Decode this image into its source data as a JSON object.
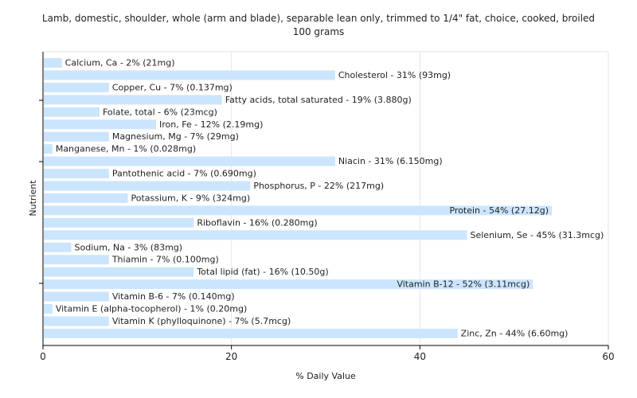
{
  "chart_data": {
    "type": "bar",
    "orientation": "horizontal",
    "title": "Lamb, domestic, shoulder, whole (arm and blade), separable lean only, trimmed to 1/4\" fat, choice, cooked, broiled",
    "subtitle": "100 grams",
    "xlabel": "% Daily Value",
    "ylabel": "Nutrient",
    "xlim": [
      0,
      60
    ],
    "xticks": [
      0,
      20,
      40,
      60
    ],
    "xtick_labels": [
      "0",
      "20",
      "40",
      "60"
    ],
    "grid": true,
    "bar_color": "#cce5ff",
    "grid_color": "#e6e6e6",
    "categories": [
      "Calcium, Ca",
      "Cholesterol",
      "Copper, Cu",
      "Fatty acids, total saturated",
      "Folate, total",
      "Iron, Fe",
      "Magnesium, Mg",
      "Manganese, Mn",
      "Niacin",
      "Pantothenic acid",
      "Phosphorus, P",
      "Potassium, K",
      "Protein",
      "Riboflavin",
      "Selenium, Se",
      "Sodium, Na",
      "Thiamin",
      "Total lipid (fat)",
      "Vitamin B-12",
      "Vitamin B-6",
      "Vitamin E (alpha-tocopherol)",
      "Vitamin K (phylloquinone)",
      "Zinc, Zn"
    ],
    "values": [
      2,
      31,
      7,
      19,
      6,
      12,
      7,
      1,
      31,
      7,
      22,
      9,
      54,
      16,
      45,
      3,
      7,
      16,
      52,
      7,
      1,
      7,
      44
    ],
    "labels": [
      "Calcium, Ca - 2% (21mg)",
      "Cholesterol - 31% (93mg)",
      "Copper, Cu - 7% (0.137mg)",
      "Fatty acids, total saturated - 19% (3.880g)",
      "Folate, total - 6% (23mcg)",
      "Iron, Fe - 12% (2.19mg)",
      "Magnesium, Mg - 7% (29mg)",
      "Manganese, Mn - 1% (0.028mg)",
      "Niacin - 31% (6.150mg)",
      "Pantothenic acid - 7% (0.690mg)",
      "Phosphorus, P - 22% (217mg)",
      "Potassium, K - 9% (324mg)",
      "Protein - 54% (27.12g)",
      "Riboflavin - 16% (0.280mg)",
      "Selenium, Se - 45% (31.3mcg)",
      "Sodium, Na - 3% (83mg)",
      "Thiamin - 7% (0.100mg)",
      "Total lipid (fat) - 16% (10.50g)",
      "Vitamin B-12 - 52% (3.11mcg)",
      "Vitamin B-6 - 7% (0.140mg)",
      "Vitamin E (alpha-tocopherol) - 1% (0.20mg)",
      "Vitamin K (phylloquinone) - 7% (5.7mcg)",
      "Zinc, Zn - 44% (6.60mg)"
    ]
  }
}
